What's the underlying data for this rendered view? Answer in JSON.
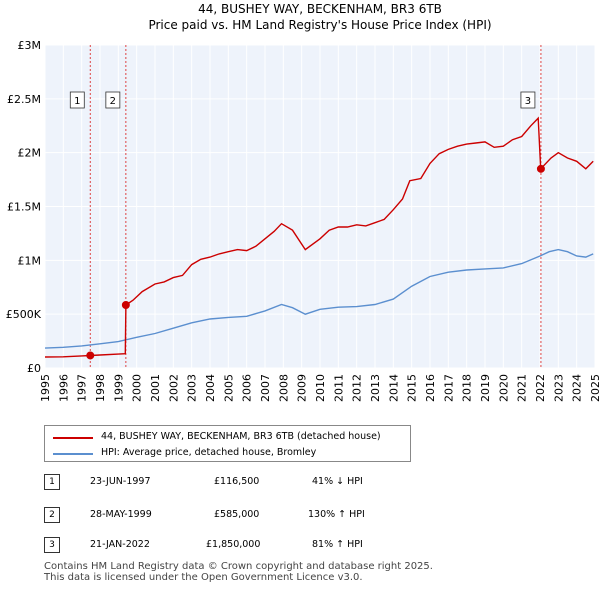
{
  "chart_data": {
    "type": "line",
    "title": "44, BUSHEY WAY, BECKENHAM, BR3 6TB",
    "subtitle": "Price paid vs. HM Land Registry's House Price Index (HPI)",
    "xlim": [
      1995,
      2025
    ],
    "ylim": [
      0,
      3000000
    ],
    "y_ticks": [
      {
        "value": 0,
        "label": "£0"
      },
      {
        "value": 500000,
        "label": "£500K"
      },
      {
        "value": 1000000,
        "label": "£1M"
      },
      {
        "value": 1500000,
        "label": "£1.5M"
      },
      {
        "value": 2000000,
        "label": "£2M"
      },
      {
        "value": 2500000,
        "label": "£2.5M"
      },
      {
        "value": 3000000,
        "label": "£3M"
      }
    ],
    "x_ticks": [
      "1995",
      "1996",
      "1997",
      "1998",
      "1999",
      "2000",
      "2001",
      "2002",
      "2003",
      "2004",
      "2005",
      "2006",
      "2007",
      "2008",
      "2009",
      "2010",
      "2011",
      "2012",
      "2013",
      "2014",
      "2015",
      "2016",
      "2017",
      "2018",
      "2019",
      "2020",
      "2021",
      "2022",
      "2023",
      "2024",
      "2025"
    ],
    "grid": true,
    "series": [
      {
        "name": "44, BUSHEY WAY, BECKENHAM, BR3 6TB (detached house)",
        "color": "#cc0000",
        "points": [
          [
            1995.0,
            102000
          ],
          [
            1996.0,
            104000
          ],
          [
            1997.0,
            112000
          ],
          [
            1997.47,
            116500
          ],
          [
            1998.0,
            121000
          ],
          [
            1999.0,
            129000
          ],
          [
            1999.38,
            133000
          ],
          [
            1999.41,
            585000
          ],
          [
            1999.8,
            630000
          ],
          [
            2000.3,
            710000
          ],
          [
            2001.0,
            780000
          ],
          [
            2001.5,
            800000
          ],
          [
            2002.0,
            840000
          ],
          [
            2002.5,
            860000
          ],
          [
            2003.0,
            960000
          ],
          [
            2003.5,
            1010000
          ],
          [
            2004.0,
            1030000
          ],
          [
            2004.5,
            1060000
          ],
          [
            2005.0,
            1080000
          ],
          [
            2005.5,
            1100000
          ],
          [
            2006.0,
            1090000
          ],
          [
            2006.5,
            1130000
          ],
          [
            2007.0,
            1200000
          ],
          [
            2007.5,
            1270000
          ],
          [
            2007.9,
            1340000
          ],
          [
            2008.5,
            1280000
          ],
          [
            2009.2,
            1100000
          ],
          [
            2010.0,
            1200000
          ],
          [
            2010.5,
            1280000
          ],
          [
            2011.0,
            1310000
          ],
          [
            2011.5,
            1310000
          ],
          [
            2012.0,
            1330000
          ],
          [
            2012.5,
            1320000
          ],
          [
            2013.0,
            1350000
          ],
          [
            2013.5,
            1380000
          ],
          [
            2014.0,
            1470000
          ],
          [
            2014.5,
            1570000
          ],
          [
            2014.9,
            1740000
          ],
          [
            2015.5,
            1760000
          ],
          [
            2016.0,
            1900000
          ],
          [
            2016.5,
            1990000
          ],
          [
            2017.0,
            2030000
          ],
          [
            2017.5,
            2060000
          ],
          [
            2018.0,
            2080000
          ],
          [
            2018.5,
            2090000
          ],
          [
            2019.0,
            2100000
          ],
          [
            2019.5,
            2050000
          ],
          [
            2020.0,
            2060000
          ],
          [
            2020.5,
            2120000
          ],
          [
            2021.0,
            2150000
          ],
          [
            2021.5,
            2250000
          ],
          [
            2021.9,
            2320000
          ],
          [
            2022.04,
            1850000
          ],
          [
            2022.6,
            1950000
          ],
          [
            2023.0,
            2000000
          ],
          [
            2023.5,
            1950000
          ],
          [
            2024.0,
            1920000
          ],
          [
            2024.5,
            1850000
          ],
          [
            2024.9,
            1920000
          ]
        ]
      },
      {
        "name": "HPI: Average price, detached house, Bromley",
        "color": "#5b8fcf",
        "points": [
          [
            1995.0,
            185000
          ],
          [
            1996.0,
            192000
          ],
          [
            1997.0,
            205000
          ],
          [
            1998.0,
            225000
          ],
          [
            1999.0,
            245000
          ],
          [
            2000.0,
            285000
          ],
          [
            2001.0,
            320000
          ],
          [
            2002.0,
            370000
          ],
          [
            2003.0,
            420000
          ],
          [
            2004.0,
            455000
          ],
          [
            2005.0,
            470000
          ],
          [
            2006.0,
            480000
          ],
          [
            2007.0,
            530000
          ],
          [
            2007.9,
            590000
          ],
          [
            2008.5,
            560000
          ],
          [
            2009.2,
            500000
          ],
          [
            2010.0,
            545000
          ],
          [
            2011.0,
            565000
          ],
          [
            2012.0,
            570000
          ],
          [
            2013.0,
            590000
          ],
          [
            2014.0,
            640000
          ],
          [
            2015.0,
            760000
          ],
          [
            2016.0,
            850000
          ],
          [
            2017.0,
            890000
          ],
          [
            2018.0,
            910000
          ],
          [
            2019.0,
            920000
          ],
          [
            2020.0,
            930000
          ],
          [
            2021.0,
            970000
          ],
          [
            2022.0,
            1040000
          ],
          [
            2022.5,
            1080000
          ],
          [
            2023.0,
            1100000
          ],
          [
            2023.5,
            1080000
          ],
          [
            2024.0,
            1040000
          ],
          [
            2024.5,
            1030000
          ],
          [
            2024.9,
            1060000
          ]
        ]
      }
    ],
    "sales": [
      {
        "num": "1",
        "x": 1997.47,
        "value": 116500
      },
      {
        "num": "2",
        "x": 1999.41,
        "value": 585000
      },
      {
        "num": "3",
        "x": 2022.05,
        "value": 1850000
      }
    ],
    "legend": [
      {
        "label": "44, BUSHEY WAY, BECKENHAM, BR3 6TB (detached house)",
        "color": "#cc0000"
      },
      {
        "label": "HPI: Average price, detached house, Bromley",
        "color": "#5b8fcf"
      }
    ]
  },
  "transactions": [
    {
      "num": "1",
      "date": "23-JUN-1997",
      "price": "£116,500",
      "hpi": "41% ↓ HPI"
    },
    {
      "num": "2",
      "date": "28-MAY-1999",
      "price": "£585,000",
      "hpi": "130% ↑ HPI"
    },
    {
      "num": "3",
      "date": "21-JAN-2022",
      "price": "£1,850,000",
      "hpi": "81% ↑ HPI"
    }
  ],
  "footer": {
    "line1": "Contains HM Land Registry data © Crown copyright and database right 2025.",
    "line2": "This data is licensed under the Open Government Licence v3.0."
  }
}
